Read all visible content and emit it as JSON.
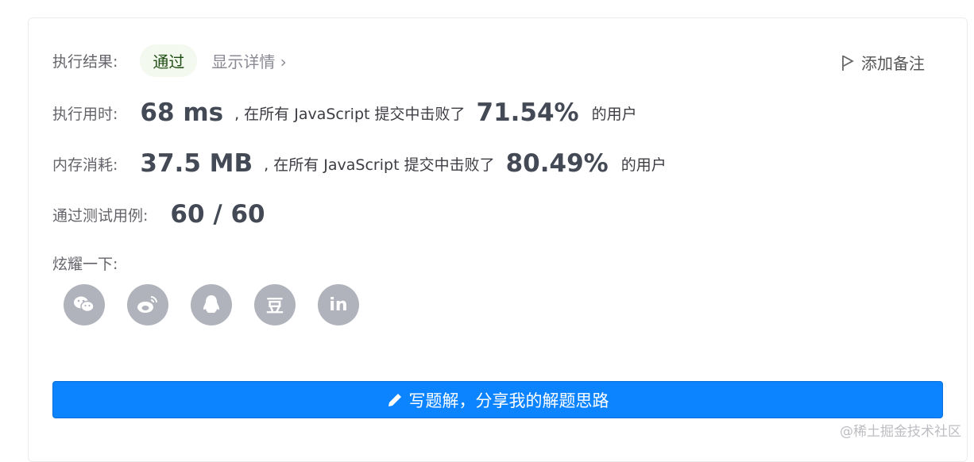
{
  "result": {
    "label": "执行结果:",
    "status": "通过",
    "details": "显示详情 ›",
    "add_note": "添加备注"
  },
  "runtime": {
    "label": "执行用时:",
    "value": "68 ms",
    "text": ", 在所有 JavaScript 提交中击败了",
    "percent": "71.54%",
    "suffix": "的用户"
  },
  "memory": {
    "label": "内存消耗:",
    "value": "37.5 MB",
    "text": ", 在所有 JavaScript 提交中击败了",
    "percent": "80.49%",
    "suffix": "的用户"
  },
  "tests": {
    "label": "通过测试用例:",
    "value": "60 / 60"
  },
  "share": {
    "label": "炫耀一下:",
    "icons": [
      "wechat-icon",
      "weibo-icon",
      "qq-icon",
      "douban-icon",
      "linkedin-icon"
    ],
    "douban_glyph": "豆",
    "linkedin_glyph": "in"
  },
  "write_button": "写题解，分享我的解题思路",
  "watermark": "@稀土掘金技术社区",
  "colors": {
    "accent": "#0d84ff",
    "pass_bg": "#f3f9ef",
    "icon_gray": "#b0b3bb"
  }
}
